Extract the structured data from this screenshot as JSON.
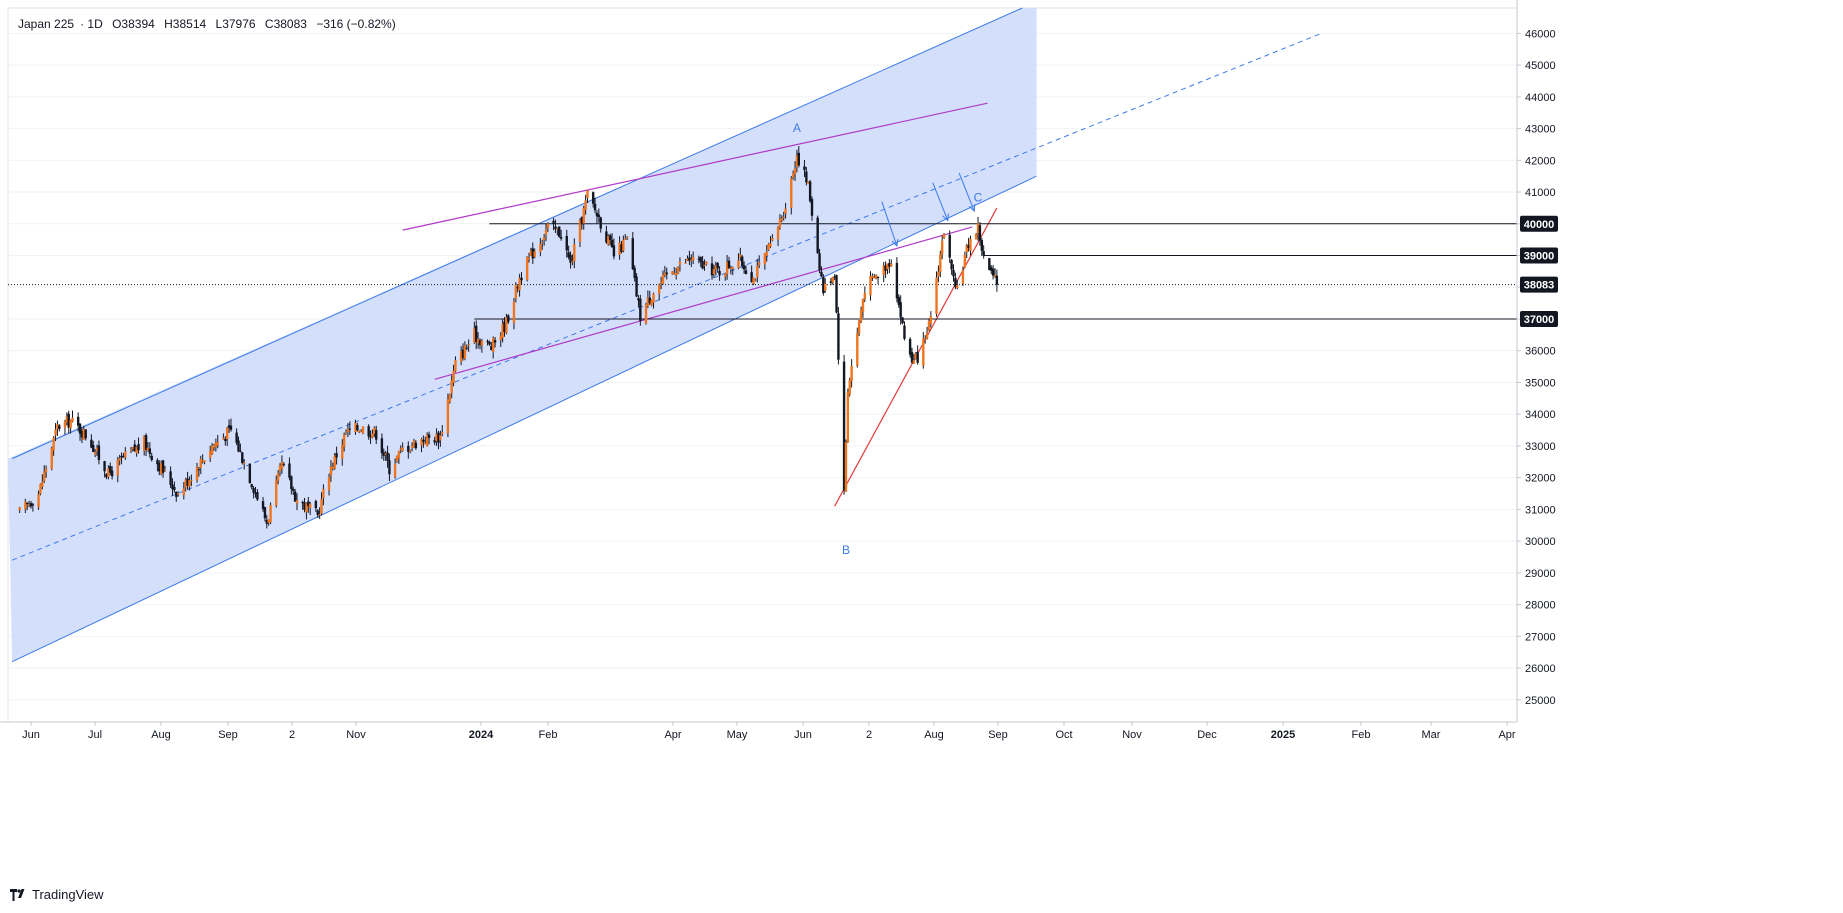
{
  "header": {
    "symbol": "Japan 225",
    "interval": "1D",
    "open": "O38394",
    "high": "H38514",
    "low": "L37976",
    "close": "C38083",
    "change": "−316 (−0.82%)"
  },
  "brand": {
    "name": "TradingView",
    "icon": "tradingview-logo-icon"
  },
  "colors": {
    "up": "#f0751f",
    "down": "#131722",
    "channel_fill": "#cdd9fb",
    "channel_line": "#3d7ae8",
    "wedge_line": "#b03ac8",
    "support_line": "#e23a3a",
    "level_line": "#131722",
    "annotation": "#3d7ae8"
  },
  "chart_data": {
    "type": "candlestick",
    "instrument": "Japan 225",
    "interval": "1D",
    "ylim": [
      24300,
      46800
    ],
    "y_ticks": [
      25000,
      26000,
      27000,
      28000,
      29000,
      30000,
      31000,
      32000,
      33000,
      34000,
      35000,
      36000,
      37000,
      38000,
      39000,
      40000,
      41000,
      42000,
      43000,
      44000,
      45000,
      46000
    ],
    "x_ticks": [
      "Jun",
      "Jul",
      "Aug",
      "Sep",
      "2",
      "Nov",
      "2024",
      "Feb",
      "Apr",
      "May",
      "Jun",
      "2",
      "Aug",
      "Sep",
      "Oct",
      "Nov",
      "Dec",
      "2025",
      "Feb",
      "Mar",
      "Apr"
    ],
    "x_ticks_bold": [
      "2024",
      "2025"
    ],
    "price_path": [
      [
        "2023-05-26",
        30900
      ],
      [
        "2023-06-05",
        31500
      ],
      [
        "2023-06-15",
        33600
      ],
      [
        "2023-06-22",
        33800
      ],
      [
        "2023-07-01",
        33300
      ],
      [
        "2023-07-12",
        32100
      ],
      [
        "2023-07-20",
        32600
      ],
      [
        "2023-07-31",
        33100
      ],
      [
        "2023-08-08",
        32400
      ],
      [
        "2023-08-18",
        31500
      ],
      [
        "2023-08-25",
        32100
      ],
      [
        "2023-09-05",
        33000
      ],
      [
        "2023-09-15",
        33500
      ],
      [
        "2023-09-22",
        32500
      ],
      [
        "2023-10-04",
        30600
      ],
      [
        "2023-10-12",
        32400
      ],
      [
        "2023-10-20",
        31300
      ],
      [
        "2023-10-31",
        30800
      ],
      [
        "2023-11-06",
        32200
      ],
      [
        "2023-11-15",
        33400
      ],
      [
        "2023-11-22",
        33600
      ],
      [
        "2023-12-01",
        33400
      ],
      [
        "2023-12-08",
        32300
      ],
      [
        "2023-12-15",
        32900
      ],
      [
        "2023-12-25",
        33200
      ],
      [
        "2024-01-04",
        33300
      ],
      [
        "2024-01-12",
        35600
      ],
      [
        "2024-01-22",
        36500
      ],
      [
        "2024-01-31",
        36100
      ],
      [
        "2024-02-08",
        36900
      ],
      [
        "2024-02-15",
        38300
      ],
      [
        "2024-02-22",
        39100
      ],
      [
        "2024-03-01",
        39900
      ],
      [
        "2024-03-08",
        39700
      ],
      [
        "2024-03-13",
        38700
      ],
      [
        "2024-03-22",
        40900
      ],
      [
        "2024-03-28",
        40200
      ],
      [
        "2024-04-05",
        39000
      ],
      [
        "2024-04-12",
        39500
      ],
      [
        "2024-04-19",
        37100
      ],
      [
        "2024-04-26",
        37900
      ],
      [
        "2024-05-07",
        38600
      ],
      [
        "2024-05-16",
        38900
      ],
      [
        "2024-05-24",
        38600
      ],
      [
        "2024-05-31",
        38500
      ],
      [
        "2024-06-10",
        38900
      ],
      [
        "2024-06-18",
        38300
      ],
      [
        "2024-06-28",
        39400
      ],
      [
        "2024-07-05",
        40600
      ],
      [
        "2024-07-11",
        42200
      ],
      [
        "2024-07-17",
        41200
      ],
      [
        "2024-07-25",
        37900
      ],
      [
        "2024-07-31",
        38500
      ],
      [
        "2024-08-02",
        35900
      ],
      [
        "2024-08-05",
        31500
      ],
      [
        "2024-08-07",
        34800
      ],
      [
        "2024-08-16",
        38000
      ],
      [
        "2024-08-23",
        38400
      ],
      [
        "2024-08-30",
        38900
      ],
      [
        "2024-09-06",
        36400
      ],
      [
        "2024-09-11",
        35600
      ],
      [
        "2024-09-18",
        36400
      ],
      [
        "2024-09-27",
        39800
      ],
      [
        "2024-10-03",
        37800
      ],
      [
        "2024-10-10",
        39400
      ],
      [
        "2024-10-15",
        39900
      ],
      [
        "2024-10-18",
        38900
      ],
      [
        "2024-10-22",
        38400
      ],
      [
        "2024-10-25",
        38083
      ]
    ],
    "last_price": 38083,
    "price_labels": [
      "40000",
      "39000",
      "38083",
      "37000"
    ],
    "annotations": [
      {
        "label": "A",
        "date": "2024-07-11",
        "value": 42900
      },
      {
        "label": "B",
        "date": "2024-08-06",
        "value": 29600
      },
      {
        "label": "C",
        "date": "2024-10-15",
        "value": 40700
      }
    ],
    "horizontal_levels": [
      {
        "value": 40000,
        "from": "2024-01-30",
        "to": "2025-04-10"
      },
      {
        "value": 39000,
        "from": "2024-10-18",
        "to": "2025-04-10"
      },
      {
        "value": 37000,
        "from": "2024-01-22",
        "to": "2025-04-10"
      }
    ],
    "channel": {
      "upper": [
        [
          "2023-05-22",
          32600
        ],
        [
          "2024-11-15",
          47000
        ]
      ],
      "lower": [
        [
          "2023-05-22",
          26200
        ],
        [
          "2024-11-15",
          41500
        ]
      ],
      "median": [
        [
          "2023-05-22",
          29400
        ],
        [
          "2025-04-15",
          46000
        ]
      ]
    },
    "wedge_lines": [
      [
        [
          "2023-12-15",
          39800
        ],
        [
          "2024-10-20",
          43800
        ]
      ],
      [
        [
          "2024-01-01",
          35100
        ],
        [
          "2024-10-12",
          39900
        ]
      ]
    ],
    "support_line": [
      [
        "2024-07-31",
        31100
      ],
      [
        "2024-10-25",
        40500
      ]
    ],
    "arrows": [
      {
        "from": [
          "2024-08-25",
          40700
        ],
        "to": [
          "2024-09-02",
          39300
        ]
      },
      {
        "from": [
          "2024-09-21",
          41300
        ],
        "to": [
          "2024-09-29",
          40100
        ]
      },
      {
        "from": [
          "2024-10-05",
          41600
        ],
        "to": [
          "2024-10-13",
          40400
        ]
      }
    ]
  }
}
